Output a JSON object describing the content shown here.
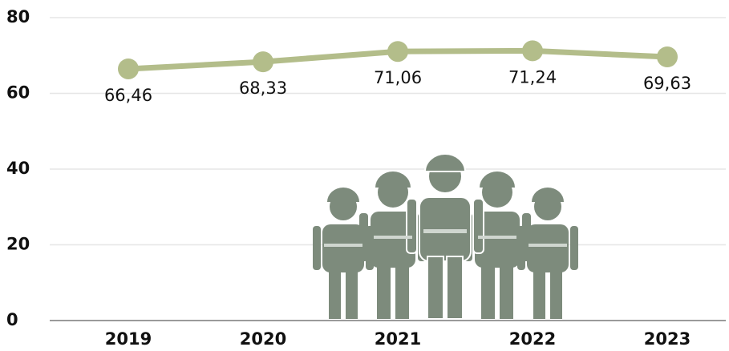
{
  "chart_data": {
    "type": "line",
    "categories": [
      "2019",
      "2020",
      "2021",
      "2022",
      "2023"
    ],
    "series": [
      {
        "color": "#b3bd8a",
        "values": [
          66.46,
          68.33,
          71.06,
          71.24,
          69.63
        ],
        "value_labels": [
          "66,46",
          "68,33",
          "71,06",
          "71,24",
          "69,63"
        ]
      }
    ],
    "ylim": [
      0,
      80
    ],
    "yticks": [
      0,
      20,
      40,
      60,
      80
    ],
    "grid": true
  }
}
